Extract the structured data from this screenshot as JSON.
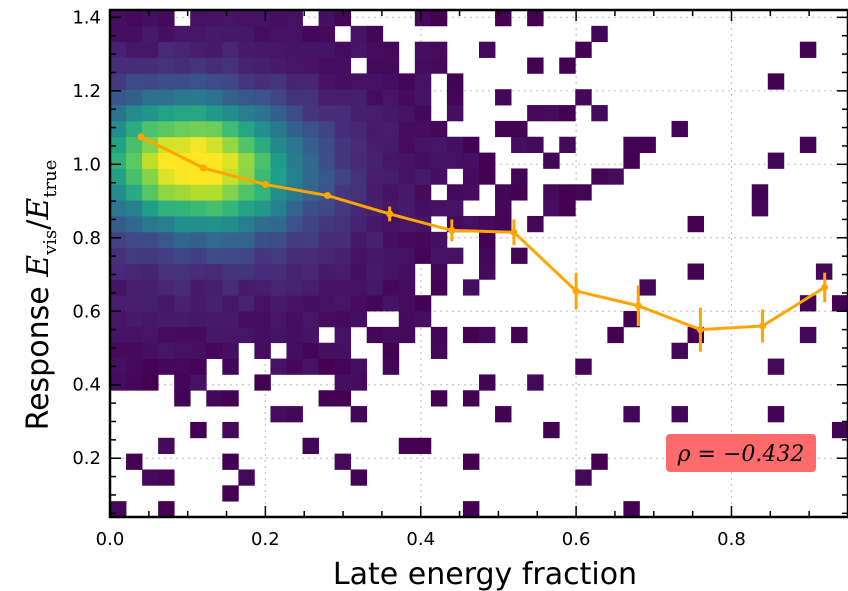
{
  "chart_data": {
    "type": "heatmap",
    "xlabel": "Late energy fraction",
    "ylabel_prefix": "Response",
    "ylabel_math": "E_vis / E_true",
    "xlim": [
      0.0,
      0.95
    ],
    "ylim": [
      0.04,
      1.42
    ],
    "xticks": [
      0.0,
      0.2,
      0.4,
      0.6,
      0.8
    ],
    "xtick_labels": [
      "0.0",
      "0.2",
      "0.4",
      "0.6",
      "0.8"
    ],
    "yticks": [
      0.2,
      0.4,
      0.6,
      0.8,
      1.0,
      1.2,
      1.4
    ],
    "ytick_labels": [
      "0.2",
      "0.4",
      "0.6",
      "0.8",
      "1.0",
      "1.2",
      "1.4"
    ],
    "grid": true,
    "colormap": "viridis",
    "annotation": {
      "text": "ρ = −0.432",
      "background_color": "#ff6b6b",
      "placement": "bottom-right"
    },
    "profile_series": {
      "color": "#ffa500",
      "x": [
        0.04,
        0.12,
        0.2,
        0.28,
        0.36,
        0.44,
        0.52,
        0.6,
        0.68,
        0.76,
        0.84,
        0.92
      ],
      "y": [
        1.075,
        0.99,
        0.945,
        0.915,
        0.865,
        0.82,
        0.815,
        0.655,
        0.615,
        0.55,
        0.56,
        0.665
      ],
      "yerr": [
        0.004,
        0.005,
        0.006,
        0.008,
        0.02,
        0.03,
        0.035,
        0.05,
        0.055,
        0.06,
        0.045,
        0.04
      ]
    },
    "histogram_summary": {
      "x_bins": 46,
      "y_bins": 32,
      "density_peak": {
        "x": 0.11,
        "y": 1.0
      }
    }
  }
}
